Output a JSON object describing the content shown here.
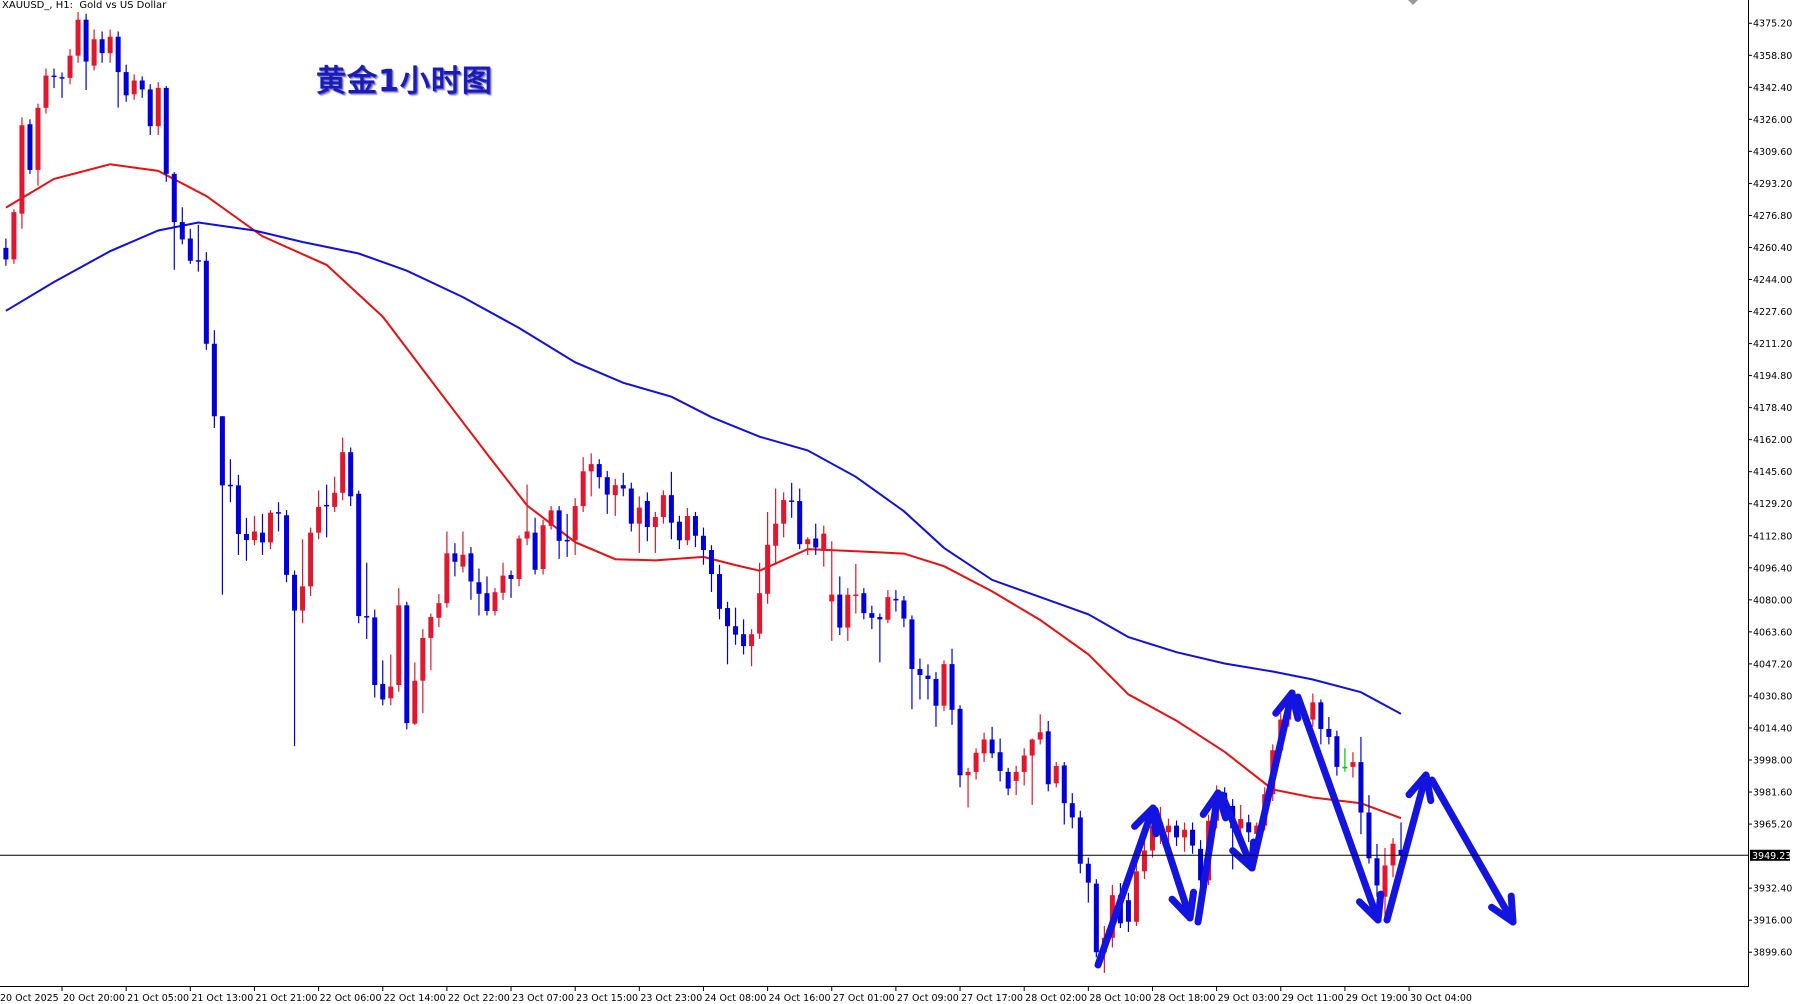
{
  "window": {
    "symbol_label": "XAUUSD_, H1:  Gold vs US Dollar"
  },
  "annotation": {
    "title": "黄金1小时图",
    "color": "#1c1cb4",
    "arrow_color": "#1414e0"
  },
  "chart_data": {
    "type": "candlestick",
    "symbol": "XAUUSD_",
    "timeframe": "H1",
    "description": "Gold vs US Dollar",
    "ohlc_order": [
      "open",
      "high",
      "low",
      "close"
    ],
    "ylim": [
      3882.3,
      4387.1
    ],
    "grid": false,
    "colors": {
      "bull": "#e3162e",
      "bear": "#0000dc",
      "doji": "#00c800",
      "background": "#ffffff"
    },
    "current_price": "3949.23",
    "current_price_value": 3949.23,
    "y_ticks": [
      "4375.20",
      "4358.80",
      "4342.40",
      "4326.00",
      "4309.60",
      "4293.20",
      "4276.80",
      "4260.40",
      "4244.00",
      "4227.60",
      "4211.20",
      "4194.80",
      "4178.40",
      "4162.00",
      "4145.60",
      "4129.20",
      "4112.80",
      "4096.40",
      "4080.00",
      "4063.60",
      "4047.20",
      "4030.80",
      "4014.40",
      "3998.00",
      "3981.60",
      "3965.20",
      "3932.40",
      "3916.00",
      "3899.60"
    ],
    "x_ticks": [
      "20 Oct 2025",
      "20 Oct 20:00",
      "21 Oct 05:00",
      "21 Oct 13:00",
      "21 Oct 21:00",
      "22 Oct 06:00",
      "22 Oct 14:00",
      "22 Oct 22:00",
      "23 Oct 07:00",
      "23 Oct 15:00",
      "23 Oct 23:00",
      "24 Oct 08:00",
      "24 Oct 16:00",
      "27 Oct 01:00",
      "27 Oct 09:00",
      "27 Oct 17:00",
      "28 Oct 02:00",
      "28 Oct 10:00",
      "28 Oct 18:00",
      "29 Oct 03:00",
      "29 Oct 11:00",
      "29 Oct 19:00",
      "30 Oct 04:00"
    ],
    "candles": [
      [
        4260.2,
        4265,
        4251,
        4254.3
      ],
      [
        4254.3,
        4280,
        4252,
        4278.5
      ],
      [
        4277.7,
        4327,
        4270,
        4323.0
      ],
      [
        4323.5,
        4326,
        4298,
        4300.1
      ],
      [
        4300.1,
        4334,
        4292,
        4331.9
      ],
      [
        4331.9,
        4352,
        4329,
        4348.4
      ],
      [
        4348.4,
        4352,
        4342,
        4348.0
      ],
      [
        4347.6,
        4350,
        4337,
        4347.2
      ],
      [
        4347.2,
        4362,
        4344,
        4358.6
      ],
      [
        4358.6,
        4381,
        4355,
        4377.0
      ],
      [
        4377.0,
        4380,
        4341,
        4355.6
      ],
      [
        4353.5,
        4372,
        4351,
        4367.0
      ],
      [
        4367.0,
        4371,
        4355,
        4359.9
      ],
      [
        4359.9,
        4372,
        4355,
        4368.3
      ],
      [
        4368.3,
        4371,
        4332,
        4350.2
      ],
      [
        4350.2,
        4354,
        4335,
        4338.3
      ],
      [
        4338.8,
        4349,
        4336,
        4345.9
      ],
      [
        4345.9,
        4348,
        4337,
        4341.3
      ],
      [
        4341.3,
        4344,
        4318,
        4322.5
      ],
      [
        4322.5,
        4345,
        4318,
        4342.1
      ],
      [
        4342.1,
        4343,
        4294,
        4298.1
      ],
      [
        4298.1,
        4299,
        4249,
        4273.4
      ],
      [
        4273.4,
        4281,
        4262,
        4264.5
      ],
      [
        4265.0,
        4270,
        4252,
        4253.6
      ],
      [
        4253.9,
        4272,
        4248,
        4253.6
      ],
      [
        4253.6,
        4258,
        4208,
        4211.1
      ],
      [
        4211.1,
        4218,
        4168,
        4174.0
      ],
      [
        4174.0,
        4174,
        4082.7,
        4138.6
      ],
      [
        4138.9,
        4152,
        4130,
        4138.6
      ],
      [
        4138.6,
        4144,
        4103,
        4113.7
      ],
      [
        4113.7,
        4122,
        4100,
        4110.6
      ],
      [
        4110.6,
        4123,
        4108,
        4115.0
      ],
      [
        4114.4,
        4124,
        4103,
        4109.4
      ],
      [
        4109.4,
        4126,
        4106,
        4124.6
      ],
      [
        4124.9,
        4130,
        4115,
        4124.6
      ],
      [
        4123.3,
        4126,
        4089,
        4092.8
      ],
      [
        4092.8,
        4095,
        4005.1,
        4074.5
      ],
      [
        4074.5,
        4111,
        4068,
        4086.9
      ],
      [
        4086.9,
        4117,
        4082,
        4114.4
      ],
      [
        4114.4,
        4136,
        4111,
        4127.6
      ],
      [
        4128.6,
        4139,
        4112,
        4128.4
      ],
      [
        4127.6,
        4143,
        4125,
        4134.8
      ],
      [
        4134.8,
        4163,
        4131,
        4155.6
      ],
      [
        4155.6,
        4158,
        4128,
        4133.0
      ],
      [
        4134.3,
        4136,
        4068,
        4071.7
      ],
      [
        4071.7,
        4099,
        4060,
        4071.5
      ],
      [
        4071.0,
        4075,
        4030,
        4036.4
      ],
      [
        4036.9,
        4049,
        4026,
        4029.0
      ],
      [
        4029.6,
        4052,
        4026,
        4035.6
      ],
      [
        4036.4,
        4086,
        4033,
        4077.2
      ],
      [
        4077.2,
        4079,
        4013.7,
        4016.9
      ],
      [
        4016.6,
        4048,
        4016,
        4038.6
      ],
      [
        4038.6,
        4065,
        4022,
        4060.5
      ],
      [
        4060.5,
        4073,
        4044,
        4071.2
      ],
      [
        4070.8,
        4083,
        4066,
        4078.3
      ],
      [
        4078.3,
        4115,
        4076,
        4103.8
      ],
      [
        4103.8,
        4109,
        4092,
        4099.5
      ],
      [
        4097.0,
        4115,
        4094,
        4103.1
      ],
      [
        4103.8,
        4107,
        4080,
        4089.4
      ],
      [
        4089.0,
        4096,
        4072,
        4083.1
      ],
      [
        4083.4,
        4092,
        4072,
        4074.3
      ],
      [
        4074.3,
        4086,
        4072,
        4083.9
      ],
      [
        4083.6,
        4099,
        4080,
        4092.4
      ],
      [
        4092.7,
        4095,
        4081,
        4090.7
      ],
      [
        4090.7,
        4113,
        4087,
        4111.4
      ],
      [
        4111.4,
        4139,
        4108,
        4115.0
      ],
      [
        4114.4,
        4122,
        4093,
        4095.4
      ],
      [
        4095.8,
        4121,
        4093,
        4118.2
      ],
      [
        4117.9,
        4128,
        4116,
        4125.8
      ],
      [
        4125.8,
        4128,
        4101,
        4110.2
      ],
      [
        4110.7,
        4124,
        4102,
        4110.5
      ],
      [
        4110.5,
        4132,
        4103,
        4128.0
      ],
      [
        4128.0,
        4153,
        4125,
        4145.8
      ],
      [
        4145.8,
        4155,
        4133,
        4149.5
      ],
      [
        4149.5,
        4152,
        4137,
        4142.8
      ],
      [
        4142.8,
        4146,
        4124,
        4133.9
      ],
      [
        4133.6,
        4142,
        4123,
        4138.7
      ],
      [
        4138.7,
        4145,
        4133,
        4137.0
      ],
      [
        4137.0,
        4140,
        4115,
        4119.0
      ],
      [
        4119.0,
        4133,
        4104,
        4127.2
      ],
      [
        4130.6,
        4135,
        4110,
        4117.3
      ],
      [
        4117.3,
        4125,
        4104,
        4122.4
      ],
      [
        4122.4,
        4136,
        4119,
        4133.6
      ],
      [
        4133.6,
        4145.5,
        4111,
        4119.5
      ],
      [
        4120.0,
        4123,
        4106,
        4110.5
      ],
      [
        4110.5,
        4127,
        4108,
        4122.9
      ],
      [
        4122.9,
        4125,
        4107,
        4112.8
      ],
      [
        4112.8,
        4117,
        4098,
        4105.5
      ],
      [
        4105.5,
        4108,
        4084,
        4093.2
      ],
      [
        4093.2,
        4098,
        4070,
        4075.4
      ],
      [
        4075.8,
        4079,
        4047,
        4066.5
      ],
      [
        4066.5,
        4076,
        4057,
        4062.2
      ],
      [
        4062.4,
        4070,
        4052,
        4056.3
      ],
      [
        4056.3,
        4065,
        4046,
        4062.4
      ],
      [
        4062.7,
        4099,
        4060,
        4083.4
      ],
      [
        4083.1,
        4125,
        4078,
        4108.2
      ],
      [
        4107.7,
        4137,
        4098,
        4119.0
      ],
      [
        4119.0,
        4135,
        4112,
        4131.1
      ],
      [
        4130.9,
        4139.9,
        4122,
        4130.6
      ],
      [
        4130.6,
        4137,
        4106,
        4108.5
      ],
      [
        4108.5,
        4112,
        4103,
        4111.0
      ],
      [
        4111.4,
        4119,
        4103,
        4106.8
      ],
      [
        4105.1,
        4118,
        4097,
        4113.9
      ],
      [
        4079.2,
        4110,
        4059,
        4082.7
      ],
      [
        4082.7,
        4092,
        4062,
        4065.8
      ],
      [
        4065.8,
        4086,
        4059,
        4082.6
      ],
      [
        4082.4,
        4098.3,
        4073,
        4082.7
      ],
      [
        4083.4,
        4086,
        4070,
        4073.2
      ],
      [
        4073.2,
        4077,
        4065,
        4070.8
      ],
      [
        4071.2,
        4073,
        4048,
        4070.0
      ],
      [
        4069.8,
        4085,
        4068,
        4081.4
      ],
      [
        4080.5,
        4085,
        4074,
        4079.7
      ],
      [
        4079.7,
        4082,
        4066,
        4070.4
      ],
      [
        4070.0,
        4072,
        4024,
        4044.6
      ],
      [
        4044.6,
        4050,
        4029,
        4041.5
      ],
      [
        4041.2,
        4047,
        4029,
        4039.5
      ],
      [
        4039.5,
        4043,
        4015,
        4025.8
      ],
      [
        4025.8,
        4049,
        4023,
        4047.1
      ],
      [
        4047.1,
        4055,
        4016,
        4023.7
      ],
      [
        4024.2,
        4026,
        3984,
        3990.2
      ],
      [
        3990.2,
        3994,
        3973.7,
        3991.9
      ],
      [
        3991.9,
        4004,
        3988,
        4001.7
      ],
      [
        4001.4,
        4012,
        3997,
        4008.5
      ],
      [
        4008.5,
        4015,
        3999,
        4001.4
      ],
      [
        4002.0,
        4009,
        3987,
        3992.4
      ],
      [
        3991.9,
        3994,
        3980,
        3983.4
      ],
      [
        3987.3,
        3995,
        3980,
        3991.9
      ],
      [
        3991.9,
        4004,
        3985,
        4000.3
      ],
      [
        4000.3,
        4009,
        3975,
        4008.5
      ],
      [
        4008.5,
        4021.4,
        4006,
        4012.2
      ],
      [
        4012.7,
        4018,
        3982,
        3985.6
      ],
      [
        3986.1,
        3997,
        3984,
        3994.9
      ],
      [
        3995.2,
        3997,
        3965,
        3975.9
      ],
      [
        3975.9,
        3981,
        3963,
        3968.6
      ],
      [
        3968.6,
        3972,
        3940,
        3944.9
      ],
      [
        3944.9,
        3948,
        3925,
        3935.2
      ],
      [
        3934.7,
        3937,
        3897,
        3899.6
      ],
      [
        3899.6,
        3913,
        3889,
        3907.0
      ],
      [
        3907.0,
        3934,
        3902,
        3928.8
      ],
      [
        3928.8,
        3935,
        3912,
        3914.4
      ],
      [
        3926.2,
        3930,
        3910,
        3915.2
      ],
      [
        3915.2,
        3945,
        3913,
        3941.0
      ],
      [
        3941.0,
        3958,
        3937,
        3951.7
      ],
      [
        3951.7,
        3968,
        3948,
        3964.4
      ],
      [
        3964.4,
        3974,
        3955,
        3966.1
      ],
      [
        3961.0,
        3968,
        3955,
        3964.4
      ],
      [
        3964.4,
        3967,
        3954,
        3958.4
      ],
      [
        3958.4,
        3966,
        3951,
        3962.3
      ],
      [
        3962.3,
        3966,
        3950,
        3954.2
      ],
      [
        3952.5,
        3957,
        3932,
        3936.4
      ],
      [
        3936.4,
        3970,
        3934,
        3966.9
      ],
      [
        3966.9,
        3985,
        3963,
        3981.3
      ],
      [
        3981.3,
        3984,
        3970,
        3974.5
      ],
      [
        3974.5,
        3978,
        3942,
        3963.0
      ],
      [
        3963.0,
        3975,
        3960,
        3967.8
      ],
      [
        3966.1,
        3970,
        3956,
        3961.0
      ],
      [
        3960.2,
        3966,
        3957,
        3964.4
      ],
      [
        3964.4,
        3984,
        3962,
        3980.5
      ],
      [
        3980.5,
        4006,
        3977,
        4003.0
      ],
      [
        4003.0,
        4022,
        4000,
        4018.7
      ],
      [
        4018.7,
        4030,
        4015,
        4025.4
      ],
      [
        4025.4,
        4029,
        4018,
        4022.0
      ],
      [
        4022.0,
        4025,
        4016,
        4019.5
      ],
      [
        4018.7,
        4032,
        4015,
        4027.5
      ],
      [
        4027.5,
        4029,
        4006,
        4013.9
      ],
      [
        4013.9,
        4020,
        4006,
        4009.8
      ],
      [
        4010.2,
        4013,
        3990,
        3994.5
      ],
      [
        3994.5,
        4004,
        3992,
        3994.5
      ],
      [
        3994.5,
        4002,
        3989,
        3996.9
      ],
      [
        3996.9,
        4009.8,
        3960,
        3971.1
      ],
      [
        3971.1,
        3980,
        3945,
        3947.7
      ],
      [
        3947.7,
        3955,
        3928,
        3933.8
      ],
      [
        3928.0,
        3953,
        3915,
        3944.0
      ],
      [
        3944.0,
        3958,
        3938,
        3955.1
      ],
      [
        3952.0,
        3966,
        3947,
        3949.2
      ]
    ],
    "moving_averages": [
      {
        "color": "#e81010",
        "points": [
          [
            0,
            4280.8
          ],
          [
            6,
            4295.5
          ],
          [
            13,
            4303
          ],
          [
            19,
            4299.6
          ],
          [
            25,
            4286.7
          ],
          [
            32,
            4266.1
          ],
          [
            40,
            4251.5
          ],
          [
            47,
            4225
          ],
          [
            54,
            4187
          ],
          [
            60,
            4154.7
          ],
          [
            65,
            4128.3
          ],
          [
            71,
            4109.5
          ],
          [
            76,
            4100.8
          ],
          [
            81,
            4100.2
          ],
          [
            87,
            4102
          ],
          [
            91,
            4097.8
          ],
          [
            94,
            4094.9
          ],
          [
            100,
            4106
          ],
          [
            106,
            4104.9
          ],
          [
            112,
            4103.7
          ],
          [
            117,
            4097.2
          ],
          [
            123,
            4084.3
          ],
          [
            129,
            4069.7
          ],
          [
            135,
            4052.1
          ],
          [
            140,
            4031.6
          ],
          [
            146,
            4018.1
          ],
          [
            152,
            4002.2
          ],
          [
            158,
            3982.9
          ],
          [
            163,
            3978.8
          ],
          [
            169,
            3975.9
          ],
          [
            174,
            3968.2
          ]
        ]
      },
      {
        "color": "#1010e0",
        "points": [
          [
            0,
            4228
          ],
          [
            6,
            4242.7
          ],
          [
            13,
            4258.5
          ],
          [
            19,
            4269.1
          ],
          [
            24,
            4273.2
          ],
          [
            31,
            4269.1
          ],
          [
            37,
            4263.2
          ],
          [
            44,
            4257.3
          ],
          [
            50,
            4248.5
          ],
          [
            57,
            4235
          ],
          [
            64,
            4219.2
          ],
          [
            71,
            4201.6
          ],
          [
            77,
            4191.1
          ],
          [
            83,
            4184
          ],
          [
            88,
            4173.5
          ],
          [
            94,
            4163.5
          ],
          [
            100,
            4156.5
          ],
          [
            106,
            4143
          ],
          [
            112,
            4125.4
          ],
          [
            117,
            4106.6
          ],
          [
            123,
            4090.2
          ],
          [
            129,
            4081.4
          ],
          [
            135,
            4072.6
          ],
          [
            140,
            4060.9
          ],
          [
            146,
            4053.2
          ],
          [
            152,
            4047.4
          ],
          [
            158,
            4043.3
          ],
          [
            163,
            4039.2
          ],
          [
            169,
            4032.7
          ],
          [
            174,
            4021.6
          ]
        ]
      }
    ]
  }
}
